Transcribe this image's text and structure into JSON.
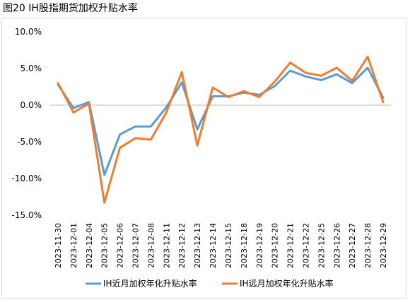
{
  "figure": {
    "title": "图20 IH股指期货加权升贴水率"
  },
  "chart_data": {
    "type": "line",
    "title": "图20 IH股指期货加权升贴水率",
    "xlabel": "",
    "ylabel": "",
    "ylim": [
      -15,
      10
    ],
    "yticks": [
      "10.0%",
      "5.0%",
      "0.0%",
      "-5.0%",
      "-10.0%",
      "-15.0%"
    ],
    "ytick_values": [
      10,
      5,
      0,
      -5,
      -10,
      -15
    ],
    "grid": false,
    "legend_position": "bottom",
    "categories": [
      "2023-11-30",
      "2023-12-01",
      "2023-12-04",
      "2023-12-05",
      "2023-12-06",
      "2023-12-07",
      "2023-12-08",
      "2023-12-11",
      "2023-12-12",
      "2023-12-13",
      "2023-12-14",
      "2023-12-15",
      "2023-12-18",
      "2023-12-19",
      "2023-12-20",
      "2023-12-21",
      "2023-12-22",
      "2023-12-25",
      "2023-12-26",
      "2023-12-27",
      "2023-12-28",
      "2023-12-29"
    ],
    "series": [
      {
        "name": "IH近月加权年化升贴水率",
        "color": "#5b9bd5",
        "values": [
          2.8,
          -0.4,
          0.4,
          -9.5,
          -4.0,
          -2.9,
          -2.9,
          -0.3,
          3.1,
          -3.3,
          1.2,
          1.2,
          1.7,
          1.4,
          2.6,
          4.7,
          3.9,
          3.4,
          4.2,
          3.0,
          5.1,
          1.0
        ]
      },
      {
        "name": "IH远月加权年化升贴水率",
        "color": "#ed7d31",
        "values": [
          3.0,
          -1.0,
          0.2,
          -13.3,
          -5.8,
          -4.5,
          -4.7,
          -1.0,
          4.5,
          -5.5,
          2.4,
          1.1,
          1.9,
          1.1,
          3.2,
          5.8,
          4.4,
          4.0,
          5.1,
          3.3,
          6.6,
          0.4
        ]
      }
    ]
  }
}
